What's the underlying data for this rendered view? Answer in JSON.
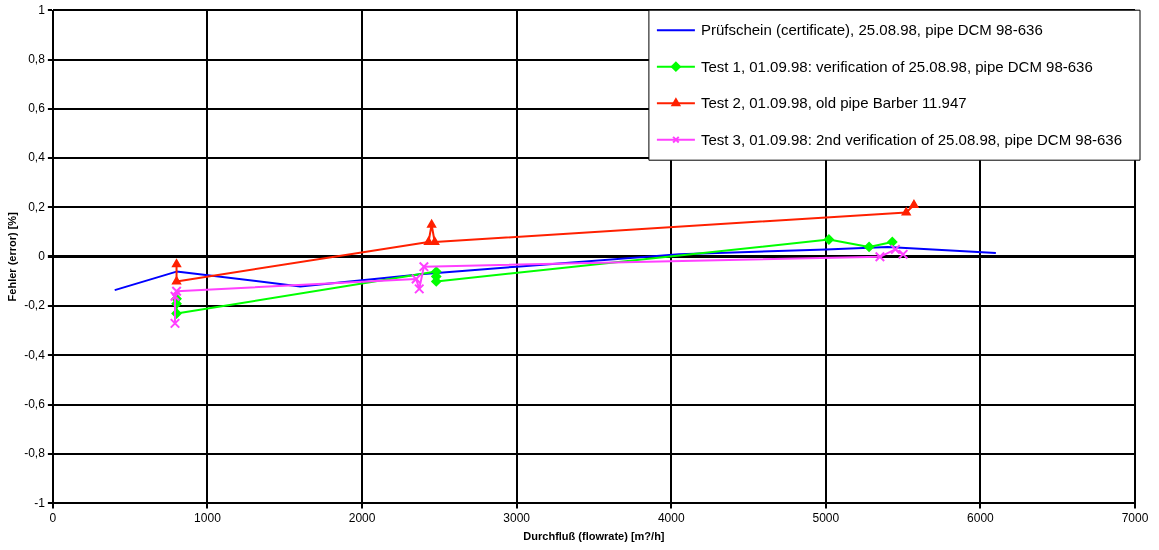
{
  "chart_data": {
    "type": "line",
    "xlabel": "Durchfluß (flowrate) [m?/h]",
    "ylabel": "Fehler (error) [%]",
    "xlim": [
      0,
      7000
    ],
    "xticks": [
      0,
      1000,
      2000,
      3000,
      4000,
      5000,
      6000,
      7000
    ],
    "ylim": [
      -1,
      1
    ],
    "yticks": [
      {
        "value": -1,
        "label": "-1"
      },
      {
        "value": -0.8,
        "label": "-0,8"
      },
      {
        "value": -0.6,
        "label": "-0,6"
      },
      {
        "value": -0.4,
        "label": "-0,4"
      },
      {
        "value": -0.2,
        "label": "-0,2"
      },
      {
        "value": 0,
        "label": "0"
      },
      {
        "value": 0.2,
        "label": "0,2"
      },
      {
        "value": 0.4,
        "label": "0,4"
      },
      {
        "value": 0.6,
        "label": "0,6"
      },
      {
        "value": 0.8,
        "label": "0,8"
      },
      {
        "value": 1,
        "label": "1"
      }
    ],
    "grid": true,
    "legend": "top right",
    "series": [
      {
        "name": "Prüfschein (certificate), 25.08.98, pipe DCM 98-636",
        "color": "#0000ff",
        "marker": "none",
        "x": [
          400,
          800,
          1600,
          2400,
          3000,
          4050,
          5000,
          5400,
          6100
        ],
        "values": [
          -0.135,
          -0.06,
          -0.12,
          -0.07,
          -0.04,
          0.01,
          0.03,
          0.04,
          0.015
        ]
      },
      {
        "name": "Test 1, 01.09.98: verification of 25.08.98, pipe DCM 98-636",
        "color": "#00ff00",
        "marker": "diamond",
        "x": [
          800,
          800,
          800,
          2480,
          2480,
          2480,
          5020,
          5280,
          5430
        ],
        "values": [
          -0.17,
          -0.19,
          -0.23,
          -0.06,
          -0.08,
          -0.1,
          0.07,
          0.04,
          0.06
        ]
      },
      {
        "name": "Test 2, 01.09.98, old pipe Barber 11.947",
        "color": "#ff2000",
        "marker": "triangle",
        "x": [
          800,
          800,
          2430,
          2450,
          2470,
          5520,
          5570
        ],
        "values": [
          -0.03,
          -0.1,
          0.06,
          0.13,
          0.06,
          0.18,
          0.21
        ]
      },
      {
        "name": "Test 3, 01.09.98: 2nd verification of 25.08.98, pipe DCM 98-636",
        "color": "#ff40ff",
        "marker": "cross",
        "x": [
          790,
          790,
          800,
          2350,
          2370,
          2400,
          5350,
          5450,
          5500
        ],
        "values": [
          -0.27,
          -0.16,
          -0.14,
          -0.09,
          -0.13,
          -0.04,
          0,
          0.03,
          0.01
        ]
      }
    ]
  }
}
